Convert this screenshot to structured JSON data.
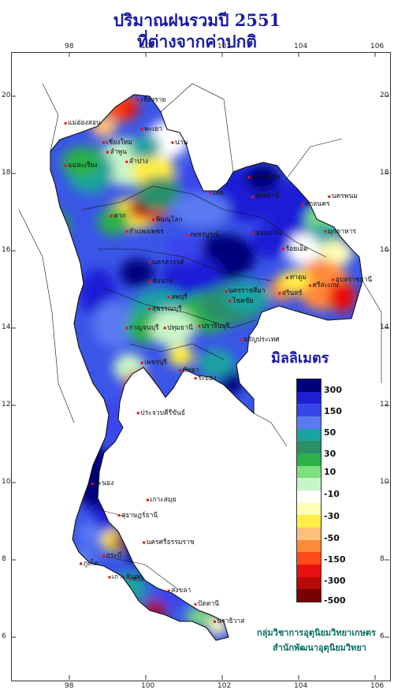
{
  "title_line1": "ปริมาณฝนรวมปี 2551",
  "title_line2": "ที่ต่างจากค่าปกติ",
  "legend": {
    "title": "มิลลิเมตร",
    "labels": [
      "300",
      "150",
      "50",
      "30",
      "10",
      "-10",
      "-30",
      "-50",
      "-150",
      "-300",
      "-500"
    ],
    "colors": [
      "#00007a",
      "#1f1fd6",
      "#3a44ec",
      "#5a7af2",
      "#1aa3a3",
      "#2b8f6a",
      "#2bb04a",
      "#7ce07c",
      "#c8f5c8",
      "#ffffff",
      "#ffffb5",
      "#ffee44",
      "#ffc07a",
      "#ff8a3a",
      "#ff4a1a",
      "#e81010",
      "#b80808",
      "#7a0000"
    ]
  },
  "axis": {
    "lon_labels": [
      "98",
      "100",
      "102",
      "104",
      "106"
    ],
    "lat_labels": [
      "20",
      "18",
      "16",
      "14",
      "12",
      "10",
      "8",
      "6"
    ]
  },
  "cities": [
    {
      "name": "แม่ฮ่องสอน",
      "lon": 97.9,
      "lat": 19.3
    },
    {
      "name": "เชียงใหม่",
      "lon": 98.9,
      "lat": 18.8
    },
    {
      "name": "ลำพูน",
      "lon": 99.0,
      "lat": 18.55
    },
    {
      "name": "ลำปาง",
      "lon": 99.5,
      "lat": 18.3
    },
    {
      "name": "น่าน",
      "lon": 100.7,
      "lat": 18.8
    },
    {
      "name": "พะเยา",
      "lon": 99.9,
      "lat": 19.15
    },
    {
      "name": "เชียงราย",
      "lon": 99.8,
      "lat": 19.9
    },
    {
      "name": "แม่สะเรียง",
      "lon": 97.9,
      "lat": 18.2
    },
    {
      "name": "ตาก",
      "lon": 99.1,
      "lat": 16.9
    },
    {
      "name": "พิษณุโลก",
      "lon": 100.2,
      "lat": 16.8
    },
    {
      "name": "กำแพงเพชร",
      "lon": 99.5,
      "lat": 16.5
    },
    {
      "name": "เพชรบูรณ์",
      "lon": 101.1,
      "lat": 16.4
    },
    {
      "name": "นครสวรรค์",
      "lon": 100.1,
      "lat": 15.7
    },
    {
      "name": "เลย",
      "lon": 101.7,
      "lat": 17.5
    },
    {
      "name": "หนองคาย",
      "lon": 102.7,
      "lat": 17.9
    },
    {
      "name": "อุดรธานี",
      "lon": 102.8,
      "lat": 17.4
    },
    {
      "name": "นครพนม",
      "lon": 104.8,
      "lat": 17.4
    },
    {
      "name": "สกลนคร",
      "lon": 104.1,
      "lat": 17.2
    },
    {
      "name": "มุกดาหาร",
      "lon": 104.7,
      "lat": 16.5
    },
    {
      "name": "ขอนแก่น",
      "lon": 102.8,
      "lat": 16.45
    },
    {
      "name": "ร้อยเอ็ด",
      "lon": 103.6,
      "lat": 16.05
    },
    {
      "name": "อุบลราชธานี",
      "lon": 104.9,
      "lat": 15.25
    },
    {
      "name": "ศรีสะเกษ",
      "lon": 104.3,
      "lat": 15.1
    },
    {
      "name": "สุรินทร์",
      "lon": 103.5,
      "lat": 14.9
    },
    {
      "name": "นครราชสีมา",
      "lon": 102.1,
      "lat": 14.95
    },
    {
      "name": "โชคชัย",
      "lon": 102.2,
      "lat": 14.7
    },
    {
      "name": "ท่าตูม",
      "lon": 103.7,
      "lat": 15.3
    },
    {
      "name": "ลพบุรี",
      "lon": 100.6,
      "lat": 14.8
    },
    {
      "name": "ชัยนาท",
      "lon": 100.1,
      "lat": 15.2
    },
    {
      "name": "สุพรรณบุรี",
      "lon": 100.1,
      "lat": 14.5
    },
    {
      "name": "กาญจนบุรี",
      "lon": 99.5,
      "lat": 14.0
    },
    {
      "name": "ปทุมธานี",
      "lon": 100.5,
      "lat": 14.0
    },
    {
      "name": "ปราจีนบุรี",
      "lon": 101.4,
      "lat": 14.05
    },
    {
      "name": "อรัญประเทศ",
      "lon": 102.5,
      "lat": 13.7
    },
    {
      "name": "เพชรบุรี",
      "lon": 99.9,
      "lat": 13.1
    },
    {
      "name": "พัทยา",
      "lon": 100.9,
      "lat": 12.9
    },
    {
      "name": "ระยอง",
      "lon": 101.3,
      "lat": 12.7
    },
    {
      "name": "ประจวบคีรีขันธ์",
      "lon": 99.8,
      "lat": 11.8
    },
    {
      "name": "ระนอง",
      "lon": 98.6,
      "lat": 9.97
    },
    {
      "name": "เกาะสมุย",
      "lon": 100.05,
      "lat": 9.55
    },
    {
      "name": "สุราษฎร์ธานี",
      "lon": 99.3,
      "lat": 9.15
    },
    {
      "name": "ภูเก็ต",
      "lon": 98.3,
      "lat": 7.9
    },
    {
      "name": "กระบี่",
      "lon": 98.9,
      "lat": 8.1
    },
    {
      "name": "นครศรีธรรมราช",
      "lon": 99.95,
      "lat": 8.45
    },
    {
      "name": "ตรัง",
      "lon": 99.6,
      "lat": 7.5
    },
    {
      "name": "สงขลา",
      "lon": 100.6,
      "lat": 7.2
    },
    {
      "name": "ปัตตานี",
      "lon": 101.3,
      "lat": 6.85
    },
    {
      "name": "นราธิวาส",
      "lon": 101.8,
      "lat": 6.4
    },
    {
      "name": "เกาะลันตา",
      "lon": 99.05,
      "lat": 7.55
    }
  ],
  "credit_line1": "กลุ่มวิชาการอุตุนิยมวิทยาเกษตร",
  "credit_line2": "สำนักพัฒนาอุตุนิยมวิทยา"
}
